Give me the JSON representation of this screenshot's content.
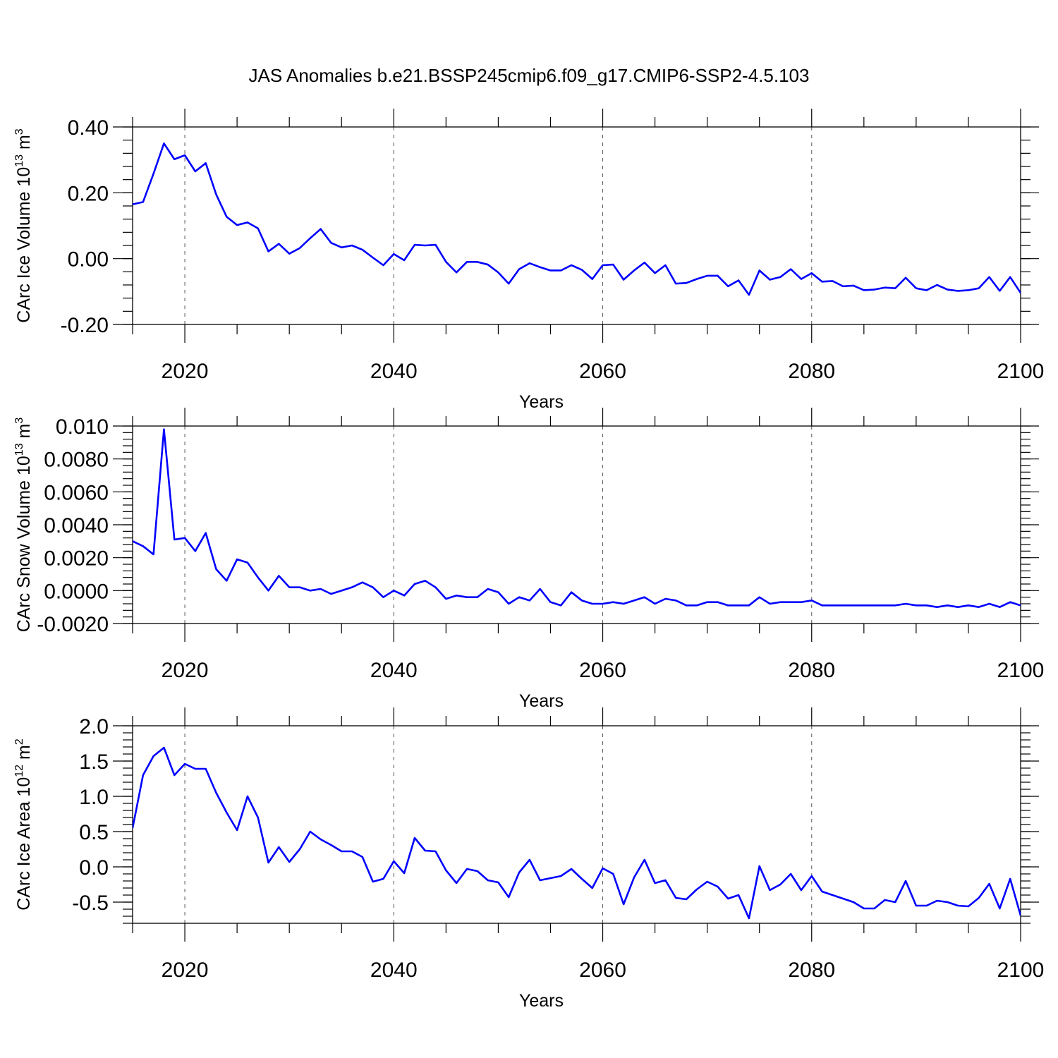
{
  "title": "JAS Anomalies b.e21.BSSP245cmip6.f09_g17.CMIP6-SSP2-4.5.103",
  "colors": {
    "line": "#0000ff",
    "axis": "#000000",
    "grid": "#555555"
  },
  "chart_data": [
    {
      "type": "line",
      "ylabel": {
        "text": "CArc Ice Volume 10",
        "sup": "13",
        "unit": " m",
        "unit_sup": "3"
      },
      "xlabel": "Years",
      "xlim": [
        2015,
        2100
      ],
      "ylim": [
        -0.2,
        0.4
      ],
      "xticks": [
        2020,
        2040,
        2060,
        2080,
        2100
      ],
      "xtick_labels": [
        "2020",
        "2040",
        "2060",
        "2080",
        "2100"
      ],
      "yticks": [
        -0.2,
        0.0,
        0.2,
        0.4
      ],
      "ytick_labels": [
        "-0.20",
        "0.00",
        "0.20",
        "0.40"
      ],
      "grid": "vertical dashed at major x ticks",
      "x": [
        2015,
        2016,
        2017,
        2018,
        2019,
        2020,
        2021,
        2022,
        2023,
        2024,
        2025,
        2026,
        2027,
        2028,
        2029,
        2030,
        2031,
        2032,
        2033,
        2034,
        2035,
        2036,
        2037,
        2038,
        2039,
        2040,
        2041,
        2042,
        2043,
        2044,
        2045,
        2046,
        2047,
        2048,
        2049,
        2050,
        2051,
        2052,
        2053,
        2054,
        2055,
        2056,
        2057,
        2058,
        2059,
        2060,
        2061,
        2062,
        2063,
        2064,
        2065,
        2066,
        2067,
        2068,
        2069,
        2070,
        2071,
        2072,
        2073,
        2074,
        2075,
        2076,
        2077,
        2078,
        2079,
        2080,
        2081,
        2082,
        2083,
        2084,
        2085,
        2086,
        2087,
        2088,
        2089,
        2090,
        2091,
        2092,
        2093,
        2094,
        2095,
        2096,
        2097,
        2098,
        2099,
        2100
      ],
      "values": [
        0.165,
        0.172,
        0.258,
        0.35,
        0.302,
        0.314,
        0.265,
        0.29,
        0.195,
        0.127,
        0.102,
        0.11,
        0.092,
        0.022,
        0.045,
        0.015,
        0.032,
        0.062,
        0.09,
        0.048,
        0.034,
        0.04,
        0.027,
        0.003,
        -0.02,
        0.014,
        -0.005,
        0.042,
        0.04,
        0.042,
        -0.01,
        -0.042,
        -0.01,
        -0.01,
        -0.018,
        -0.042,
        -0.076,
        -0.032,
        -0.014,
        -0.026,
        -0.036,
        -0.036,
        -0.02,
        -0.034,
        -0.062,
        -0.02,
        -0.018,
        -0.064,
        -0.036,
        -0.012,
        -0.044,
        -0.02,
        -0.076,
        -0.074,
        -0.062,
        -0.052,
        -0.052,
        -0.084,
        -0.066,
        -0.11,
        -0.036,
        -0.064,
        -0.056,
        -0.032,
        -0.062,
        -0.044,
        -0.07,
        -0.068,
        -0.084,
        -0.082,
        -0.096,
        -0.094,
        -0.088,
        -0.09,
        -0.058,
        -0.09,
        -0.096,
        -0.08,
        -0.094,
        -0.098,
        -0.096,
        -0.09,
        -0.056,
        -0.098,
        -0.056,
        -0.104
      ]
    },
    {
      "type": "line",
      "ylabel": {
        "text": "CArc Snow Volume 10",
        "sup": "13",
        "unit": " m",
        "unit_sup": "3"
      },
      "xlabel": "Years",
      "xlim": [
        2015,
        2100
      ],
      "ylim": [
        -0.002,
        0.01
      ],
      "xticks": [
        2020,
        2040,
        2060,
        2080,
        2100
      ],
      "xtick_labels": [
        "2020",
        "2040",
        "2060",
        "2080",
        "2100"
      ],
      "yticks": [
        -0.002,
        0.0,
        0.002,
        0.004,
        0.006,
        0.008,
        0.01
      ],
      "ytick_labels": [
        "-0.0020",
        "0.0000",
        "0.0020",
        "0.0040",
        "0.0060",
        "0.0080",
        "0.010"
      ],
      "grid": "vertical dashed at major x ticks",
      "x": [
        2015,
        2016,
        2017,
        2018,
        2019,
        2020,
        2021,
        2022,
        2023,
        2024,
        2025,
        2026,
        2027,
        2028,
        2029,
        2030,
        2031,
        2032,
        2033,
        2034,
        2035,
        2036,
        2037,
        2038,
        2039,
        2040,
        2041,
        2042,
        2043,
        2044,
        2045,
        2046,
        2047,
        2048,
        2049,
        2050,
        2051,
        2052,
        2053,
        2054,
        2055,
        2056,
        2057,
        2058,
        2059,
        2060,
        2061,
        2062,
        2063,
        2064,
        2065,
        2066,
        2067,
        2068,
        2069,
        2070,
        2071,
        2072,
        2073,
        2074,
        2075,
        2076,
        2077,
        2078,
        2079,
        2080,
        2081,
        2082,
        2083,
        2084,
        2085,
        2086,
        2087,
        2088,
        2089,
        2090,
        2091,
        2092,
        2093,
        2094,
        2095,
        2096,
        2097,
        2098,
        2099,
        2100
      ],
      "values": [
        0.003,
        0.0027,
        0.0022,
        0.0098,
        0.0031,
        0.0032,
        0.0024,
        0.0035,
        0.0013,
        0.0006,
        0.0019,
        0.0017,
        0.0008,
        0.0,
        0.0009,
        0.0002,
        0.0002,
        0.0,
        0.0001,
        -0.0002,
        0.0,
        0.0002,
        0.0005,
        0.0002,
        -0.0004,
        0.0,
        -0.0003,
        0.0004,
        0.0006,
        0.0002,
        -0.0005,
        -0.0003,
        -0.0004,
        -0.0004,
        0.0001,
        -0.0001,
        -0.0008,
        -0.0004,
        -0.0006,
        0.0001,
        -0.0007,
        -0.0009,
        -0.0001,
        -0.0006,
        -0.0008,
        -0.0008,
        -0.0007,
        -0.0008,
        -0.0006,
        -0.0004,
        -0.0008,
        -0.0005,
        -0.0006,
        -0.0009,
        -0.0009,
        -0.0007,
        -0.0007,
        -0.0009,
        -0.0009,
        -0.0009,
        -0.0004,
        -0.0008,
        -0.0007,
        -0.0007,
        -0.0007,
        -0.0006,
        -0.0009,
        -0.0009,
        -0.0009,
        -0.0009,
        -0.0009,
        -0.0009,
        -0.0009,
        -0.0009,
        -0.0008,
        -0.0009,
        -0.0009,
        -0.001,
        -0.0009,
        -0.001,
        -0.0009,
        -0.001,
        -0.0008,
        -0.001,
        -0.0007,
        -0.0009
      ]
    },
    {
      "type": "line",
      "ylabel": {
        "text": "CArc Ice Area 10",
        "sup": "12",
        "unit": " m",
        "unit_sup": "2"
      },
      "xlabel": "Years",
      "xlim": [
        2015,
        2100
      ],
      "ylim": [
        -0.8,
        2.0
      ],
      "xticks": [
        2020,
        2040,
        2060,
        2080,
        2100
      ],
      "xtick_labels": [
        "2020",
        "2040",
        "2060",
        "2080",
        "2100"
      ],
      "yticks": [
        -0.5,
        0.0,
        0.5,
        1.0,
        1.5,
        2.0
      ],
      "ytick_labels": [
        "-0.5",
        "0.0",
        "0.5",
        "1.0",
        "1.5",
        "2.0"
      ],
      "grid": "vertical dashed at major x ticks",
      "x": [
        2015,
        2016,
        2017,
        2018,
        2019,
        2020,
        2021,
        2022,
        2023,
        2024,
        2025,
        2026,
        2027,
        2028,
        2029,
        2030,
        2031,
        2032,
        2033,
        2034,
        2035,
        2036,
        2037,
        2038,
        2039,
        2040,
        2041,
        2042,
        2043,
        2044,
        2045,
        2046,
        2047,
        2048,
        2049,
        2050,
        2051,
        2052,
        2053,
        2054,
        2055,
        2056,
        2057,
        2058,
        2059,
        2060,
        2061,
        2062,
        2063,
        2064,
        2065,
        2066,
        2067,
        2068,
        2069,
        2070,
        2071,
        2072,
        2073,
        2074,
        2075,
        2076,
        2077,
        2078,
        2079,
        2080,
        2081,
        2082,
        2083,
        2084,
        2085,
        2086,
        2087,
        2088,
        2089,
        2090,
        2091,
        2092,
        2093,
        2094,
        2095,
        2096,
        2097,
        2098,
        2099,
        2100
      ],
      "values": [
        0.55,
        1.3,
        1.57,
        1.69,
        1.3,
        1.46,
        1.39,
        1.39,
        1.05,
        0.77,
        0.52,
        1.0,
        0.7,
        0.06,
        0.28,
        0.07,
        0.25,
        0.5,
        0.39,
        0.31,
        0.22,
        0.22,
        0.14,
        -0.21,
        -0.17,
        0.08,
        -0.09,
        0.41,
        0.23,
        0.22,
        -0.05,
        -0.23,
        -0.03,
        -0.06,
        -0.19,
        -0.22,
        -0.43,
        -0.08,
        0.1,
        -0.19,
        -0.16,
        -0.13,
        -0.03,
        -0.17,
        -0.3,
        -0.02,
        -0.1,
        -0.53,
        -0.15,
        0.1,
        -0.23,
        -0.19,
        -0.44,
        -0.46,
        -0.32,
        -0.21,
        -0.28,
        -0.45,
        -0.4,
        -0.73,
        0.01,
        -0.33,
        -0.25,
        -0.1,
        -0.33,
        -0.13,
        -0.35,
        -0.4,
        -0.45,
        -0.5,
        -0.59,
        -0.59,
        -0.47,
        -0.5,
        -0.2,
        -0.55,
        -0.55,
        -0.48,
        -0.5,
        -0.55,
        -0.56,
        -0.44,
        -0.24,
        -0.59,
        -0.17,
        -0.69
      ]
    }
  ]
}
